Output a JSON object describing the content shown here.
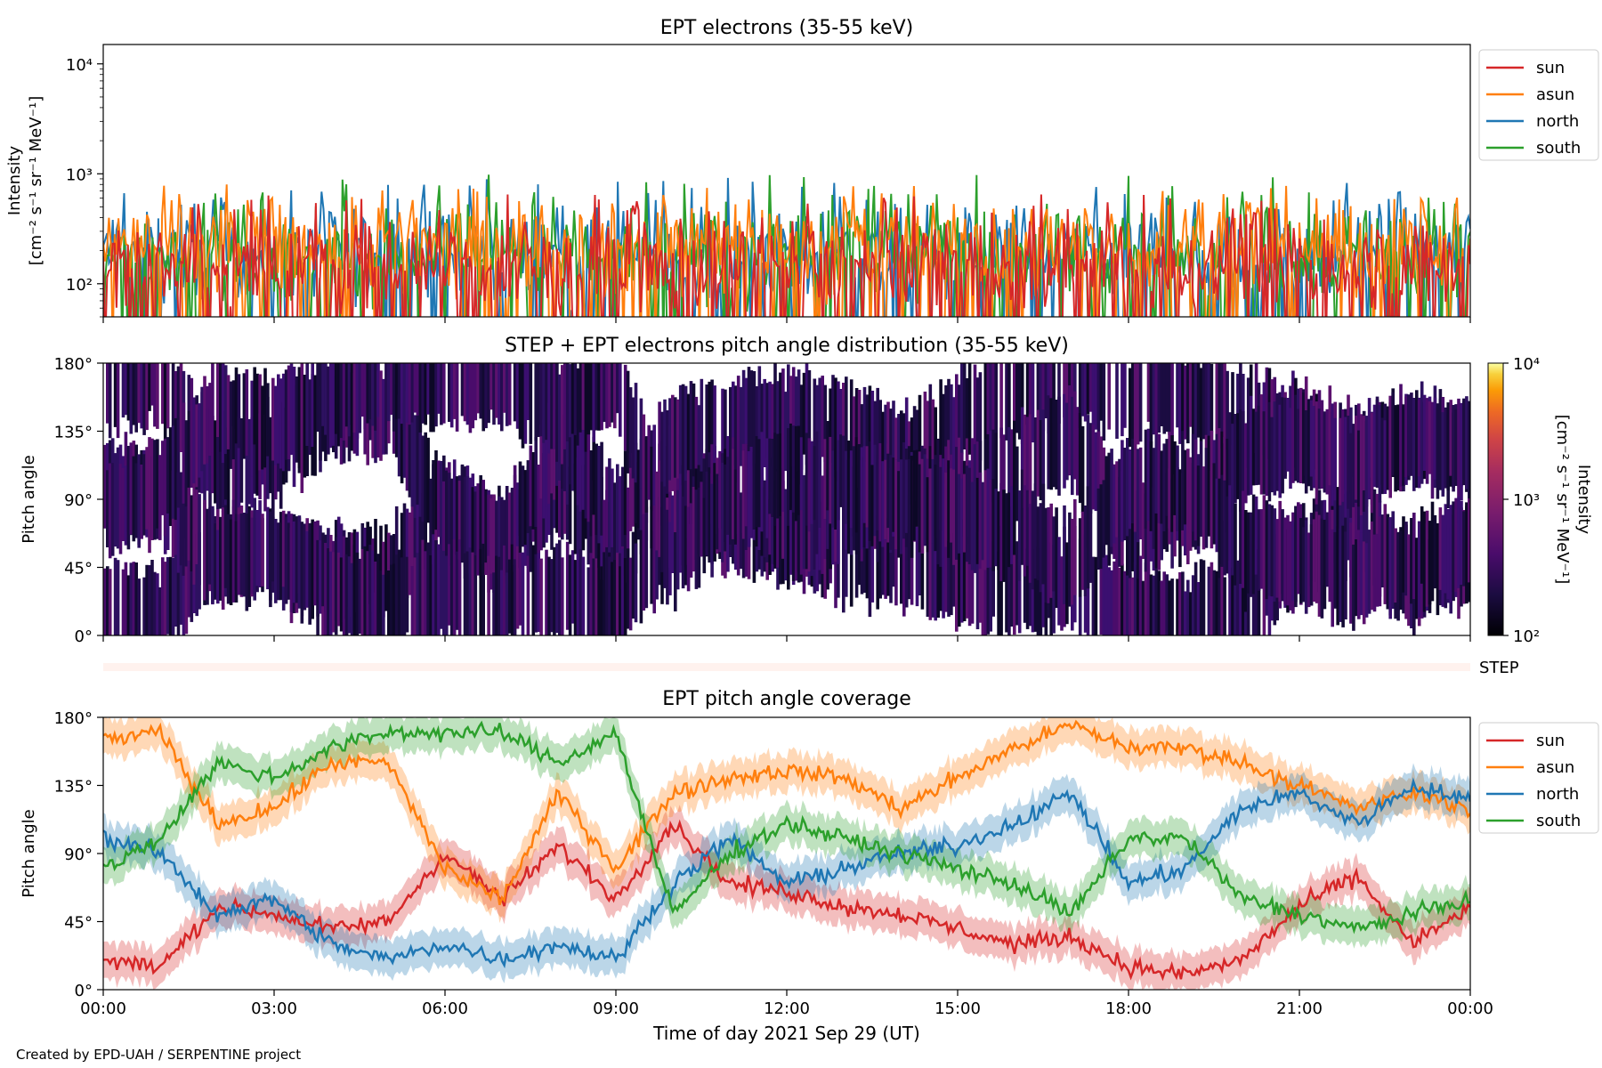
{
  "figure": {
    "credit": "Created by EPD-UAH / SERPENTINE project",
    "xlabel": "Time of day 2021 Sep 29 (UT)",
    "xticks": [
      "00:00",
      "03:00",
      "06:00",
      "09:00",
      "12:00",
      "15:00",
      "18:00",
      "21:00",
      "00:00"
    ],
    "xrange_hours": [
      0,
      24
    ]
  },
  "colors": {
    "sun": "#d62728",
    "asun": "#ff7f0e",
    "north": "#1f77b4",
    "south": "#2ca02c"
  },
  "chart_data": [
    {
      "type": "line",
      "title": "EPT electrons (35-55 keV)",
      "ylabel_line1": "Intensity",
      "ylabel_line2": "[cm⁻² s⁻¹ sr⁻¹ MeV⁻¹]",
      "yscale": "log",
      "ylim": [
        50,
        15000
      ],
      "yticks": [
        {
          "value": 100,
          "label": "10²"
        },
        {
          "value": 1000,
          "label": "10³"
        },
        {
          "value": 10000,
          "label": "10⁴"
        }
      ],
      "legend": {
        "placement": "outside-right",
        "entries": [
          "sun",
          "asun",
          "north",
          "south"
        ]
      },
      "series": [
        {
          "name": "sun",
          "typical": 150,
          "peak": 650
        },
        {
          "name": "asun",
          "typical": 230,
          "peak": 800
        },
        {
          "name": "north",
          "typical": 200,
          "peak": 950
        },
        {
          "name": "south",
          "typical": 200,
          "peak": 1000
        }
      ]
    },
    {
      "type": "heatmap",
      "title": "STEP + EPT electrons pitch angle distribution (35-55 keV)",
      "ylabel": "Pitch angle",
      "ylim": [
        0,
        180
      ],
      "yticks": [
        "0°",
        "45°",
        "90°",
        "135°",
        "180°"
      ],
      "colorbar": {
        "label_line1": "Intensity",
        "label_line2": "[cm⁻² s⁻¹ sr⁻¹ MeV⁻¹]",
        "scale": "log",
        "range": [
          100,
          10000
        ],
        "ticks": [
          "10²",
          "10³",
          "10⁴"
        ],
        "colormap": "inferno"
      },
      "typical_intensity": 250,
      "step_label": "STEP"
    },
    {
      "type": "line",
      "title": "EPT pitch angle coverage",
      "ylabel": "Pitch angle",
      "ylim": [
        0,
        180
      ],
      "yticks": [
        "0°",
        "45°",
        "90°",
        "135°",
        "180°"
      ],
      "legend": {
        "placement": "outside-right",
        "entries": [
          "sun",
          "asun",
          "north",
          "south"
        ]
      },
      "band_halfwidth_deg": 12,
      "x_hours": [
        0,
        1,
        2,
        3,
        4,
        5,
        6,
        7,
        8,
        9,
        10,
        11,
        12,
        13,
        14,
        15,
        16,
        17,
        18,
        19,
        20,
        21,
        22,
        23,
        24
      ],
      "series": [
        {
          "name": "sun",
          "values": [
            20,
            15,
            55,
            50,
            40,
            45,
            90,
            60,
            95,
            60,
            110,
            70,
            65,
            55,
            50,
            40,
            30,
            35,
            15,
            10,
            20,
            55,
            75,
            30,
            55
          ]
        },
        {
          "name": "asun",
          "values": [
            165,
            170,
            110,
            120,
            150,
            150,
            80,
            60,
            130,
            80,
            130,
            140,
            145,
            140,
            120,
            140,
            160,
            175,
            160,
            160,
            150,
            135,
            120,
            130,
            120
          ]
        },
        {
          "name": "north",
          "values": [
            100,
            90,
            50,
            60,
            30,
            20,
            30,
            20,
            30,
            20,
            70,
            100,
            70,
            80,
            90,
            95,
            110,
            130,
            70,
            80,
            120,
            130,
            110,
            135,
            125
          ]
        },
        {
          "name": "south",
          "values": [
            80,
            100,
            150,
            140,
            160,
            170,
            170,
            170,
            150,
            170,
            50,
            90,
            110,
            100,
            90,
            80,
            70,
            50,
            100,
            100,
            60,
            50,
            40,
            50,
            60
          ]
        }
      ]
    }
  ]
}
